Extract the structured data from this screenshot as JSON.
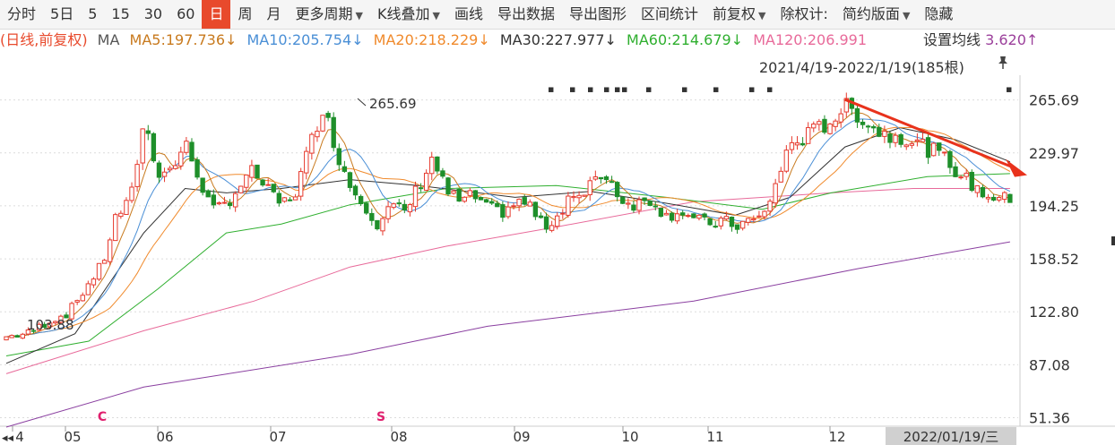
{
  "toolbar": {
    "items": [
      {
        "label": "分时",
        "active": false,
        "dropdown": false
      },
      {
        "label": "5日",
        "active": false,
        "dropdown": false
      },
      {
        "label": "5",
        "active": false,
        "dropdown": false
      },
      {
        "label": "15",
        "active": false,
        "dropdown": false
      },
      {
        "label": "30",
        "active": false,
        "dropdown": false
      },
      {
        "label": "60",
        "active": false,
        "dropdown": false
      },
      {
        "label": "日",
        "active": true,
        "dropdown": false
      },
      {
        "label": "周",
        "active": false,
        "dropdown": false
      },
      {
        "label": "月",
        "active": false,
        "dropdown": false
      },
      {
        "label": "更多周期",
        "active": false,
        "dropdown": true
      },
      {
        "label": "K线叠加",
        "active": false,
        "dropdown": true
      },
      {
        "label": "画线",
        "active": false,
        "dropdown": false
      },
      {
        "label": "导出数据",
        "active": false,
        "dropdown": false
      },
      {
        "label": "导出图形",
        "active": false,
        "dropdown": false
      },
      {
        "label": "区间统计",
        "active": false,
        "dropdown": false
      },
      {
        "label": "前复权",
        "active": false,
        "dropdown": true
      },
      {
        "label": "除权计:",
        "active": false,
        "dropdown": false
      },
      {
        "label": "简约版面",
        "active": false,
        "dropdown": true
      },
      {
        "label": "隐藏",
        "active": false,
        "dropdown": false
      }
    ]
  },
  "ma_bar": {
    "prefix": "(日线,前复权)",
    "ma_label": "MA",
    "items": [
      {
        "text": "MA5:197.736↓",
        "color": "#c87a1e"
      },
      {
        "text": "MA10:205.754↓",
        "color": "#4a8fd6"
      },
      {
        "text": "MA20:218.229↓",
        "color": "#f08a2c"
      },
      {
        "text": "MA30:227.977↓",
        "color": "#333333"
      },
      {
        "text": "MA60:214.679↓",
        "color": "#2faf2f"
      },
      {
        "text": "MA120:206.991",
        "color": "#e86a9a"
      }
    ],
    "settings_label": "设置均线",
    "tail_text": "3.620↑"
  },
  "range_label": "2021/4/19-2022/1/19(185根)",
  "colors": {
    "up": "#e63a2e",
    "down": "#1e8f2a",
    "grid": "#dcdcdc",
    "arrow": "#e8321c",
    "marker": "#e0206e",
    "ma5": "#c87a1e",
    "ma10": "#4a8fd6",
    "ma20": "#f08a2c",
    "ma30": "#333333",
    "ma60": "#2faf2f",
    "ma120": "#e86a9a",
    "ma250": "#8a3fa0"
  },
  "chart_data": {
    "type": "candlestick",
    "y_ticks": [
      265.69,
      229.97,
      194.25,
      158.52,
      122.8,
      87.08,
      51.36
    ],
    "ylim": [
      48,
      280
    ],
    "x_months": [
      "4",
      "05",
      "06",
      "07",
      "08",
      "09",
      "10",
      "11",
      "12"
    ],
    "x_end_label": "2022/01/19/三",
    "annotations": {
      "high": "265.69",
      "low": "103.88"
    },
    "event_markers": [
      "C",
      "S"
    ],
    "candle_count": 185,
    "close_anchors": [
      [
        0,
        106
      ],
      [
        6,
        108
      ],
      [
        12,
        116
      ],
      [
        18,
        122
      ],
      [
        24,
        142
      ],
      [
        28,
        155
      ],
      [
        32,
        188
      ],
      [
        36,
        196
      ],
      [
        40,
        252
      ],
      [
        44,
        218
      ],
      [
        48,
        218
      ],
      [
        52,
        236
      ],
      [
        56,
        214
      ],
      [
        60,
        190
      ],
      [
        64,
        196
      ],
      [
        68,
        208
      ],
      [
        72,
        218
      ],
      [
        76,
        204
      ],
      [
        80,
        195
      ],
      [
        84,
        203
      ],
      [
        88,
        232
      ],
      [
        92,
        262
      ],
      [
        96,
        232
      ],
      [
        100,
        208
      ],
      [
        104,
        197
      ],
      [
        108,
        182
      ],
      [
        112,
        194
      ],
      [
        116,
        190
      ],
      [
        120,
        208
      ],
      [
        124,
        227
      ],
      [
        128,
        204
      ],
      [
        132,
        197
      ],
      [
        136,
        201
      ],
      [
        140,
        192
      ],
      [
        144,
        190
      ],
      [
        148,
        196
      ],
      [
        152,
        196
      ],
      [
        156,
        180
      ],
      [
        160,
        186
      ],
      [
        164,
        203
      ],
      [
        168,
        198
      ],
      [
        172,
        218
      ],
      [
        176,
        210
      ],
      [
        180,
        196
      ],
      [
        184,
        196
      ],
      [
        188,
        199
      ],
      [
        192,
        187
      ],
      [
        196,
        192
      ],
      [
        200,
        185
      ],
      [
        204,
        182
      ],
      [
        208,
        184
      ],
      [
        212,
        181
      ],
      [
        216,
        184
      ],
      [
        220,
        186
      ],
      [
        224,
        210
      ],
      [
        228,
        236
      ],
      [
        232,
        240
      ],
      [
        236,
        246
      ],
      [
        240,
        252
      ],
      [
        244,
        261
      ],
      [
        248,
        256
      ],
      [
        252,
        247
      ],
      [
        256,
        242
      ],
      [
        260,
        242
      ],
      [
        264,
        238
      ],
      [
        268,
        233
      ],
      [
        272,
        228
      ],
      [
        276,
        219
      ],
      [
        280,
        210
      ],
      [
        284,
        203
      ],
      [
        288,
        200
      ],
      [
        292,
        198
      ]
    ],
    "ma_series": [
      {
        "name": "MA250",
        "color": "#8a3fa0",
        "points": [
          [
            0,
            45
          ],
          [
            40,
            72
          ],
          [
            100,
            94
          ],
          [
            140,
            113
          ],
          [
            200,
            130
          ],
          [
            248,
            152
          ],
          [
            292,
            170
          ]
        ]
      },
      {
        "name": "MA120",
        "color": "#e86a9a",
        "points": [
          [
            0,
            81
          ],
          [
            40,
            110
          ],
          [
            72,
            130
          ],
          [
            100,
            153
          ],
          [
            128,
            167
          ],
          [
            160,
            180
          ],
          [
            200,
            197
          ],
          [
            240,
            203
          ],
          [
            264,
            206
          ],
          [
            292,
            206
          ]
        ]
      },
      {
        "name": "MA60",
        "color": "#2faf2f",
        "points": [
          [
            0,
            93
          ],
          [
            24,
            103
          ],
          [
            44,
            138
          ],
          [
            64,
            176
          ],
          [
            80,
            182
          ],
          [
            100,
            195
          ],
          [
            128,
            206
          ],
          [
            160,
            208
          ],
          [
            192,
            200
          ],
          [
            220,
            192
          ],
          [
            240,
            203
          ],
          [
            268,
            214
          ],
          [
            292,
            216
          ]
        ]
      },
      {
        "name": "MA30",
        "color": "#333333",
        "points": [
          [
            0,
            88
          ],
          [
            20,
            108
          ],
          [
            40,
            176
          ],
          [
            52,
            206
          ],
          [
            64,
            203
          ],
          [
            80,
            206
          ],
          [
            100,
            212
          ],
          [
            120,
            208
          ],
          [
            148,
            200
          ],
          [
            170,
            204
          ],
          [
            192,
            196
          ],
          [
            212,
            188
          ],
          [
            228,
            200
          ],
          [
            244,
            234
          ],
          [
            260,
            247
          ],
          [
            276,
            239
          ],
          [
            292,
            224
          ]
        ]
      },
      {
        "name": "MA20",
        "color": "#f08a2c",
        "smooth_of_close": 20
      },
      {
        "name": "MA10",
        "color": "#4a8fd6",
        "smooth_of_close": 10
      },
      {
        "name": "MA5",
        "color": "#c87a1e",
        "smooth_of_close": 5
      }
    ],
    "trend_arrow": {
      "from": [
        244,
        266
      ],
      "to": [
        300,
        215
      ]
    }
  }
}
